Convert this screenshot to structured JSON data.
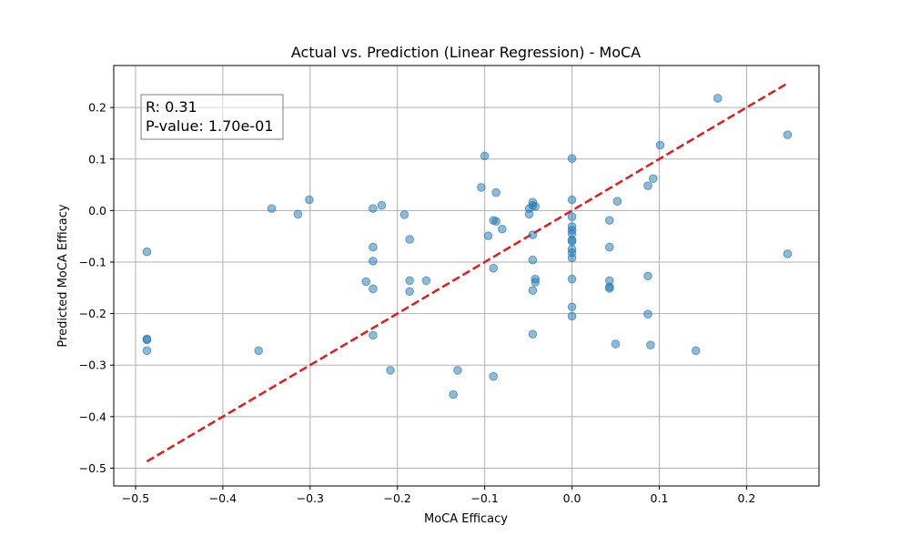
{
  "chart_data": {
    "type": "scatter",
    "title": "Actual vs. Prediction (Linear Regression) - MoCA",
    "xlabel": "MoCA Efficacy",
    "ylabel": "Predicted MoCA Efficacy",
    "xlim": [
      -0.525,
      0.283
    ],
    "ylim": [
      -0.5345,
      0.2815
    ],
    "xticks": [
      -0.5,
      -0.4,
      -0.3,
      -0.2,
      -0.1,
      0.0,
      0.1,
      0.2
    ],
    "xtick_labels": [
      "−0.5",
      "−0.4",
      "−0.3",
      "−0.2",
      "−0.1",
      "0.0",
      "0.1",
      "0.2"
    ],
    "yticks": [
      -0.5,
      -0.4,
      -0.3,
      -0.2,
      -0.1,
      0.0,
      0.1,
      0.2
    ],
    "ytick_labels": [
      "−0.5",
      "−0.4",
      "−0.3",
      "−0.2",
      "−0.1",
      "0.0",
      "0.1",
      "0.2"
    ],
    "grid": true,
    "point_color": "#1f77b4",
    "line_color": "#e41a1c",
    "reference_line": {
      "x": [
        -0.487,
        0.247
      ],
      "y": [
        -0.487,
        0.247
      ],
      "style": "dashed"
    },
    "annotation": {
      "r_text": "R: 0.31",
      "p_text": "P-value: 1.70e-01",
      "placement": "top-left"
    },
    "points": [
      [
        -0.487,
        -0.08
      ],
      [
        -0.487,
        -0.249
      ],
      [
        -0.487,
        -0.251
      ],
      [
        -0.487,
        -0.272
      ],
      [
        -0.359,
        -0.272
      ],
      [
        -0.344,
        0.004
      ],
      [
        -0.314,
        -0.007
      ],
      [
        -0.301,
        0.021
      ],
      [
        -0.236,
        -0.138
      ],
      [
        -0.228,
        0.004
      ],
      [
        -0.228,
        -0.071
      ],
      [
        -0.228,
        -0.098
      ],
      [
        -0.228,
        -0.152
      ],
      [
        -0.228,
        -0.242
      ],
      [
        -0.218,
        0.01
      ],
      [
        -0.208,
        -0.31
      ],
      [
        -0.192,
        -0.008
      ],
      [
        -0.186,
        -0.056
      ],
      [
        -0.186,
        -0.136
      ],
      [
        -0.186,
        -0.157
      ],
      [
        -0.167,
        -0.136
      ],
      [
        -0.136,
        -0.357
      ],
      [
        -0.131,
        -0.31
      ],
      [
        -0.104,
        0.045
      ],
      [
        -0.1,
        0.106
      ],
      [
        -0.096,
        -0.049
      ],
      [
        -0.09,
        -0.019
      ],
      [
        -0.09,
        -0.112
      ],
      [
        -0.09,
        -0.322
      ],
      [
        -0.087,
        0.035
      ],
      [
        -0.087,
        -0.021
      ],
      [
        -0.08,
        -0.036
      ],
      [
        -0.049,
        0.004
      ],
      [
        -0.049,
        -0.007
      ],
      [
        -0.045,
        0.016
      ],
      [
        -0.045,
        0.01
      ],
      [
        -0.045,
        -0.047
      ],
      [
        -0.045,
        -0.096
      ],
      [
        -0.045,
        -0.155
      ],
      [
        -0.045,
        -0.24
      ],
      [
        -0.042,
        0.008
      ],
      [
        -0.042,
        -0.133
      ],
      [
        -0.042,
        -0.139
      ],
      [
        0.0,
        0.101
      ],
      [
        0.0,
        0.021
      ],
      [
        0.0,
        -0.012
      ],
      [
        0.0,
        -0.031
      ],
      [
        0.0,
        -0.038
      ],
      [
        0.0,
        -0.045
      ],
      [
        0.0,
        -0.057
      ],
      [
        0.0,
        -0.06
      ],
      [
        0.0,
        -0.075
      ],
      [
        0.0,
        -0.082
      ],
      [
        0.0,
        -0.092
      ],
      [
        0.0,
        -0.133
      ],
      [
        0.0,
        -0.187
      ],
      [
        0.0,
        -0.205
      ],
      [
        0.043,
        -0.019
      ],
      [
        0.043,
        -0.071
      ],
      [
        0.043,
        -0.136
      ],
      [
        0.043,
        -0.148
      ],
      [
        0.043,
        -0.151
      ],
      [
        0.05,
        -0.259
      ],
      [
        0.052,
        0.018
      ],
      [
        0.087,
        0.048
      ],
      [
        0.087,
        -0.127
      ],
      [
        0.087,
        -0.201
      ],
      [
        0.09,
        -0.261
      ],
      [
        0.093,
        0.062
      ],
      [
        0.101,
        0.127
      ],
      [
        0.142,
        -0.272
      ],
      [
        0.167,
        0.218
      ],
      [
        0.247,
        0.147
      ],
      [
        0.247,
        -0.084
      ]
    ]
  }
}
